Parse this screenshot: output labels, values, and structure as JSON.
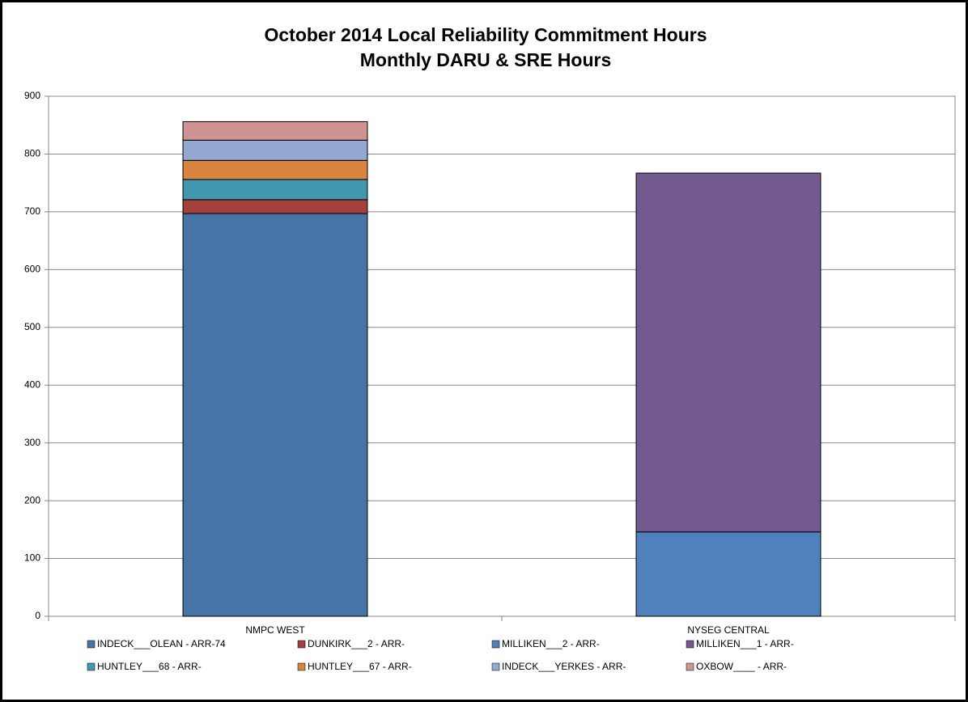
{
  "chart_data": {
    "type": "stacked_bar",
    "title": "October 2014 Local Reliability Commitment Hours",
    "subtitle": "Monthly DARU & SRE Hours",
    "categories": [
      "NMPC WEST",
      "NYSEG CENTRAL"
    ],
    "series": [
      {
        "name": "INDECK___OLEAN - ARR-74",
        "color": "#4675a8",
        "values": [
          697,
          0
        ]
      },
      {
        "name": "DUNKIRK___2 - ARR-",
        "color": "#a5403d",
        "values": [
          24,
          0
        ]
      },
      {
        "name": "MILLIKEN___2 - ARR-",
        "color": "#4f81bd",
        "values": [
          0,
          146
        ]
      },
      {
        "name": "MILLIKEN___1 - ARR-",
        "color": "#725990",
        "values": [
          0,
          621
        ]
      },
      {
        "name": "HUNTLEY___68 - ARR-",
        "color": "#3f98b0",
        "values": [
          35,
          0
        ]
      },
      {
        "name": "HUNTLEY___67 - ARR-",
        "color": "#db843d",
        "values": [
          33,
          0
        ]
      },
      {
        "name": "INDECK___YERKES - ARR-",
        "color": "#93a9d3",
        "values": [
          35,
          0
        ]
      },
      {
        "name": "OXBOW____ - ARR-",
        "color": "#d09393",
        "values": [
          32,
          0
        ]
      }
    ],
    "ylim": [
      0,
      900
    ],
    "yticks": [
      0,
      100,
      200,
      300,
      400,
      500,
      600,
      700,
      800,
      900
    ],
    "grid": true,
    "legend": "bottom"
  }
}
